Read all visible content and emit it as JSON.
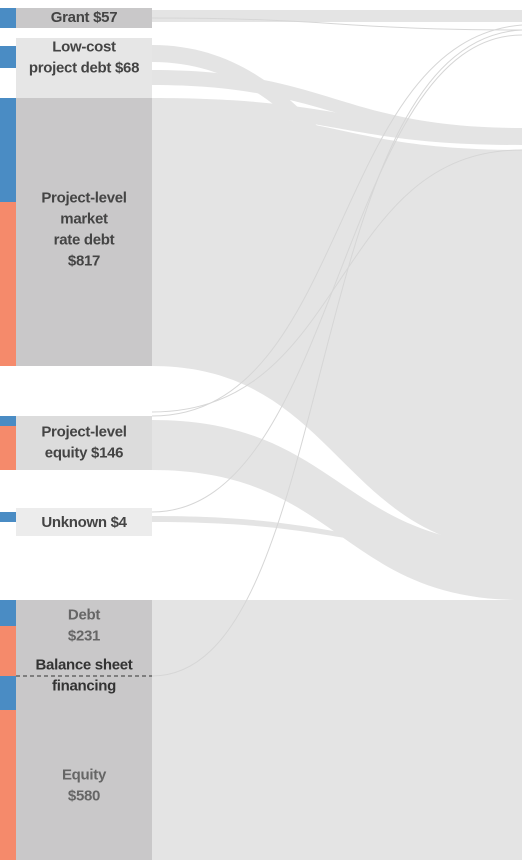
{
  "nodes": [
    {
      "lines": [
        "Grant $57"
      ]
    },
    {
      "lines": [
        "Low-cost",
        "project debt $68"
      ]
    },
    {
      "lines": [
        "Project-level",
        "market",
        "rate debt",
        "$817"
      ]
    },
    {
      "lines": [
        "Project-level",
        "equity $146"
      ]
    },
    {
      "lines": [
        "Unknown $4"
      ]
    },
    {
      "lines": [
        "Debt",
        "$231"
      ]
    },
    {
      "lines": [
        "Equity",
        "$580"
      ]
    }
  ],
  "group": {
    "lines": [
      "Balance sheet",
      "financing"
    ]
  }
}
